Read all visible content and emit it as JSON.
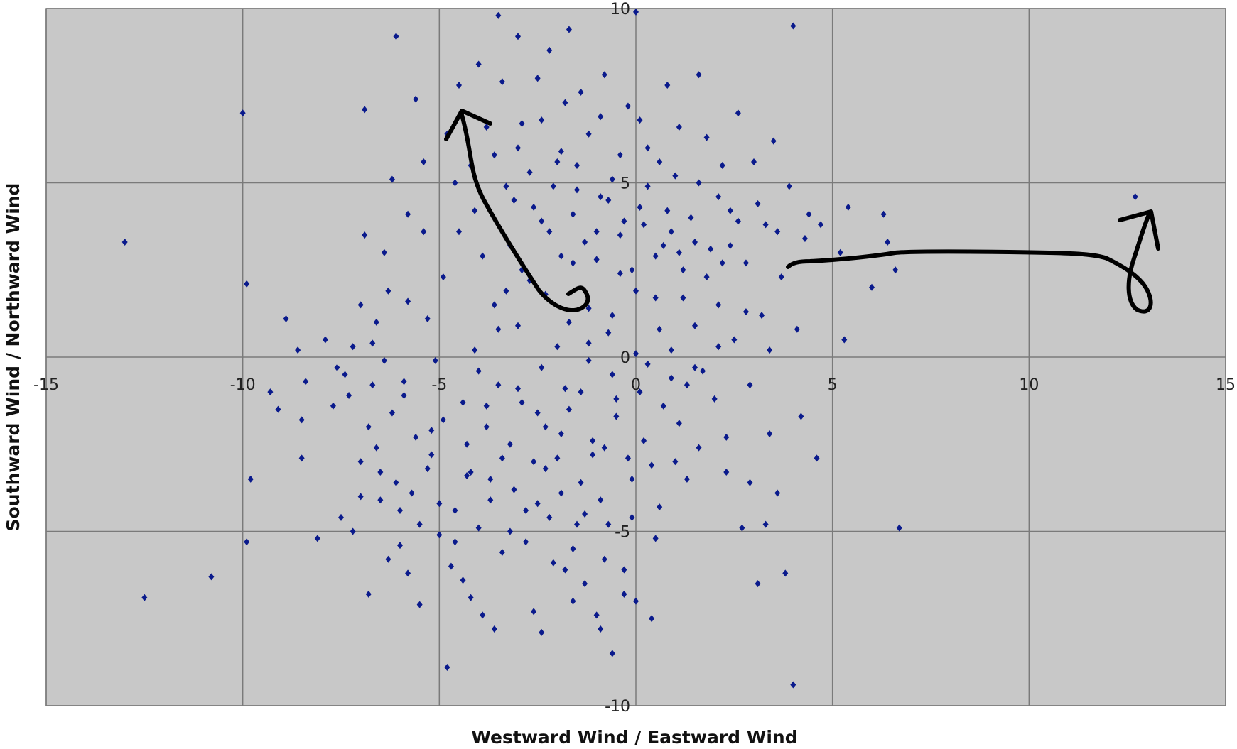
{
  "chart_data": {
    "type": "scatter",
    "title": "",
    "xlabel": "Westward Wind / Eastward Wind",
    "ylabel": "Southward Wind / Northward Wind",
    "xlim": [
      -15,
      15
    ],
    "ylim": [
      -10,
      10
    ],
    "x_ticks": [
      -15,
      -10,
      -5,
      0,
      5,
      10,
      15
    ],
    "y_ticks": [
      10,
      5,
      0,
      -5,
      -10
    ],
    "grid": true,
    "plot_background": "#c8c8c8",
    "grid_color": "#7a7a7a",
    "marker_color": "#0a1a8c",
    "annotation_color": "#000000",
    "series": [
      {
        "points": [
          [
            -13.0,
            3.3
          ],
          [
            -12.5,
            -6.9
          ],
          [
            -10.8,
            -6.3
          ],
          [
            -10.0,
            7.0
          ],
          [
            -9.9,
            2.1
          ],
          [
            -9.9,
            -5.3
          ],
          [
            -9.8,
            -3.5
          ],
          [
            -9.3,
            -1.0
          ],
          [
            -9.1,
            -1.5
          ],
          [
            -8.9,
            1.1
          ],
          [
            -8.6,
            0.2
          ],
          [
            -8.5,
            -1.8
          ],
          [
            -8.5,
            -2.9
          ],
          [
            -8.4,
            -0.7
          ],
          [
            -8.1,
            -5.2
          ],
          [
            -7.9,
            0.5
          ],
          [
            -7.7,
            -1.4
          ],
          [
            -7.5,
            -4.6
          ],
          [
            -7.4,
            -0.5
          ],
          [
            -7.3,
            -1.1
          ],
          [
            -7.2,
            -5.0
          ],
          [
            -7.0,
            1.5
          ],
          [
            -7.0,
            -3.0
          ],
          [
            -6.9,
            3.5
          ],
          [
            -6.9,
            7.1
          ],
          [
            -6.8,
            -6.8
          ],
          [
            -6.8,
            -2.0
          ],
          [
            -6.7,
            -0.8
          ],
          [
            -6.7,
            0.4
          ],
          [
            -6.6,
            -2.6
          ],
          [
            -6.5,
            -3.3
          ],
          [
            -6.5,
            -4.1
          ],
          [
            -6.4,
            -0.1
          ],
          [
            -6.4,
            3.0
          ],
          [
            -6.3,
            1.9
          ],
          [
            -6.2,
            5.1
          ],
          [
            -6.1,
            9.2
          ],
          [
            -6.0,
            -4.4
          ],
          [
            -6.0,
            -5.4
          ],
          [
            -5.9,
            -1.1
          ],
          [
            -5.9,
            -0.7
          ],
          [
            -5.8,
            1.6
          ],
          [
            -5.7,
            -3.9
          ],
          [
            -5.6,
            7.4
          ],
          [
            -5.5,
            -7.1
          ],
          [
            -5.4,
            3.6
          ],
          [
            -5.3,
            -3.2
          ],
          [
            -5.2,
            -2.1
          ],
          [
            -5.1,
            -0.1
          ],
          [
            -5.0,
            -5.1
          ],
          [
            -4.9,
            -1.8
          ],
          [
            -4.8,
            -8.9
          ],
          [
            -4.7,
            -6.0
          ],
          [
            -4.6,
            -4.4
          ],
          [
            -4.6,
            5.0
          ],
          [
            -4.5,
            7.8
          ],
          [
            -4.4,
            -6.4
          ],
          [
            -4.3,
            -2.5
          ],
          [
            -4.2,
            -3.3
          ],
          [
            -4.1,
            4.2
          ],
          [
            -4.0,
            -0.4
          ],
          [
            -3.9,
            -7.4
          ],
          [
            -3.9,
            2.9
          ],
          [
            -3.8,
            -1.4
          ],
          [
            -3.7,
            -4.1
          ],
          [
            -3.6,
            5.8
          ],
          [
            -3.5,
            0.8
          ],
          [
            -3.5,
            9.8
          ],
          [
            -3.4,
            -2.9
          ],
          [
            -3.3,
            1.9
          ],
          [
            -3.2,
            -5.0
          ],
          [
            -3.1,
            4.5
          ],
          [
            -3.0,
            9.2
          ],
          [
            -3.0,
            -0.9
          ],
          [
            -2.9,
            6.7
          ],
          [
            -2.8,
            -4.4
          ],
          [
            -2.7,
            2.2
          ],
          [
            -2.6,
            -7.3
          ],
          [
            -2.5,
            8.0
          ],
          [
            -2.5,
            -1.6
          ],
          [
            -2.4,
            3.9
          ],
          [
            -2.3,
            -3.2
          ],
          [
            -2.2,
            8.8
          ],
          [
            -2.1,
            -5.9
          ],
          [
            -2.0,
            0.3
          ],
          [
            -2.0,
            5.6
          ],
          [
            -1.9,
            -2.2
          ],
          [
            -1.8,
            7.3
          ],
          [
            -1.8,
            -6.1
          ],
          [
            -1.7,
            9.4
          ],
          [
            -1.6,
            2.7
          ],
          [
            -1.5,
            -4.8
          ],
          [
            -1.5,
            4.8
          ],
          [
            -1.4,
            -1.0
          ],
          [
            -1.3,
            -6.5
          ],
          [
            -1.2,
            1.4
          ],
          [
            -1.2,
            6.4
          ],
          [
            -1.1,
            -2.8
          ],
          [
            -1.0,
            3.6
          ],
          [
            -1.0,
            -7.4
          ],
          [
            -0.9,
            -4.1
          ],
          [
            -0.8,
            8.1
          ],
          [
            -0.7,
            0.7
          ],
          [
            -0.6,
            -8.5
          ],
          [
            -0.6,
            5.1
          ],
          [
            -0.5,
            -1.7
          ],
          [
            -0.4,
            2.4
          ],
          [
            -0.3,
            -6.1
          ],
          [
            -0.2,
            7.2
          ],
          [
            -0.1,
            -3.5
          ],
          [
            0.0,
            9.9
          ],
          [
            0.0,
            0.1
          ],
          [
            0.1,
            4.3
          ],
          [
            0.2,
            -2.4
          ],
          [
            0.3,
            6.0
          ],
          [
            0.4,
            -7.5
          ],
          [
            0.5,
            1.7
          ],
          [
            0.6,
            -4.3
          ],
          [
            0.7,
            3.2
          ],
          [
            0.8,
            7.8
          ],
          [
            0.9,
            -0.6
          ],
          [
            1.0,
            5.2
          ],
          [
            1.1,
            -1.9
          ],
          [
            1.2,
            2.5
          ],
          [
            1.3,
            -3.5
          ],
          [
            1.4,
            4.0
          ],
          [
            1.5,
            0.9
          ],
          [
            1.6,
            8.1
          ],
          [
            1.7,
            -0.4
          ],
          [
            1.8,
            6.3
          ],
          [
            1.9,
            3.1
          ],
          [
            2.0,
            -1.2
          ],
          [
            2.1,
            1.5
          ],
          [
            2.2,
            5.5
          ],
          [
            2.3,
            -2.3
          ],
          [
            2.4,
            4.2
          ],
          [
            2.5,
            0.5
          ],
          [
            2.6,
            7.0
          ],
          [
            2.7,
            -4.9
          ],
          [
            2.8,
            2.7
          ],
          [
            2.9,
            -0.8
          ],
          [
            3.0,
            5.6
          ],
          [
            3.1,
            -6.5
          ],
          [
            3.2,
            1.2
          ],
          [
            3.3,
            3.8
          ],
          [
            3.4,
            -2.2
          ],
          [
            3.5,
            6.2
          ],
          [
            3.6,
            -3.9
          ],
          [
            3.7,
            2.3
          ],
          [
            3.8,
            -6.2
          ],
          [
            3.9,
            4.9
          ],
          [
            4.0,
            -9.4
          ],
          [
            4.0,
            9.5
          ],
          [
            4.1,
            0.8
          ],
          [
            4.2,
            -1.7
          ],
          [
            4.3,
            3.4
          ],
          [
            4.4,
            4.1
          ],
          [
            4.6,
            -2.9
          ],
          [
            4.7,
            3.8
          ],
          [
            5.2,
            3.0
          ],
          [
            5.3,
            0.5
          ],
          [
            5.4,
            4.3
          ],
          [
            6.0,
            2.0
          ],
          [
            6.3,
            4.1
          ],
          [
            6.4,
            3.3
          ],
          [
            6.6,
            2.5
          ],
          [
            6.7,
            -4.9
          ],
          [
            12.7,
            4.6
          ],
          [
            -2.6,
            4.3
          ],
          [
            -2.2,
            3.6
          ],
          [
            -1.9,
            2.9
          ],
          [
            -1.6,
            4.1
          ],
          [
            -1.3,
            3.3
          ],
          [
            -1.0,
            2.8
          ],
          [
            -0.7,
            4.5
          ],
          [
            -0.4,
            3.5
          ],
          [
            -0.1,
            2.5
          ],
          [
            0.2,
            3.8
          ],
          [
            0.5,
            2.9
          ],
          [
            0.8,
            4.2
          ],
          [
            1.1,
            3.0
          ],
          [
            -3.2,
            3.2
          ],
          [
            -2.9,
            2.5
          ],
          [
            -2.3,
            1.8
          ],
          [
            -1.7,
            1.0
          ],
          [
            -1.2,
            0.4
          ],
          [
            -0.6,
            1.2
          ],
          [
            0.0,
            1.9
          ],
          [
            0.6,
            0.8
          ],
          [
            1.2,
            1.7
          ],
          [
            1.8,
            2.3
          ],
          [
            2.4,
            3.2
          ],
          [
            -3.6,
            1.5
          ],
          [
            -3.0,
            0.9
          ],
          [
            -2.4,
            -0.3
          ],
          [
            -1.8,
            -0.9
          ],
          [
            -1.2,
            -0.1
          ],
          [
            -0.6,
            -0.5
          ],
          [
            0.3,
            -0.2
          ],
          [
            0.9,
            0.2
          ],
          [
            1.5,
            -0.3
          ],
          [
            2.1,
            0.3
          ],
          [
            -4.1,
            0.2
          ],
          [
            -3.5,
            -0.8
          ],
          [
            -2.9,
            -1.3
          ],
          [
            -2.3,
            -2.0
          ],
          [
            -1.7,
            -1.5
          ],
          [
            -1.1,
            -2.4
          ],
          [
            -0.5,
            -1.2
          ],
          [
            0.1,
            -1.0
          ],
          [
            0.7,
            -1.4
          ],
          [
            1.3,
            -0.8
          ],
          [
            -4.4,
            -1.3
          ],
          [
            -3.8,
            -2.0
          ],
          [
            -3.2,
            -2.5
          ],
          [
            -2.6,
            -3.0
          ],
          [
            -2.0,
            -2.9
          ],
          [
            -1.4,
            -3.6
          ],
          [
            -0.8,
            -2.6
          ],
          [
            -0.2,
            -2.9
          ],
          [
            0.4,
            -3.1
          ],
          [
            -4.3,
            -3.4
          ],
          [
            -3.7,
            -3.5
          ],
          [
            -3.1,
            -3.8
          ],
          [
            -2.5,
            -4.2
          ],
          [
            -1.9,
            -3.9
          ],
          [
            -1.3,
            -4.5
          ],
          [
            -0.7,
            -4.8
          ],
          [
            -0.1,
            -4.6
          ],
          [
            -4.9,
            2.3
          ],
          [
            -4.5,
            3.6
          ],
          [
            -4.2,
            5.5
          ],
          [
            -3.8,
            6.6
          ],
          [
            -3.4,
            7.9
          ],
          [
            -3.0,
            6.0
          ],
          [
            -2.4,
            6.8
          ],
          [
            -1.9,
            5.9
          ],
          [
            -1.4,
            7.6
          ],
          [
            -0.9,
            6.9
          ],
          [
            -0.4,
            5.8
          ],
          [
            0.1,
            6.8
          ],
          [
            0.6,
            5.6
          ],
          [
            1.1,
            6.6
          ],
          [
            1.6,
            5.0
          ],
          [
            2.1,
            4.6
          ],
          [
            2.6,
            3.9
          ],
          [
            3.1,
            4.4
          ],
          [
            3.6,
            3.6
          ],
          [
            -5.3,
            1.1
          ],
          [
            -5.2,
            -2.8
          ],
          [
            -5.6,
            -2.3
          ],
          [
            -6.2,
            -1.6
          ],
          [
            -6.6,
            1.0
          ],
          [
            -7.2,
            0.3
          ],
          [
            -7.6,
            -0.3
          ],
          [
            -5.8,
            4.1
          ],
          [
            -5.4,
            5.6
          ],
          [
            -4.8,
            6.4
          ],
          [
            -4.0,
            8.4
          ],
          [
            -3.3,
            4.9
          ],
          [
            -2.7,
            5.3
          ],
          [
            -2.1,
            4.9
          ],
          [
            -1.5,
            5.5
          ],
          [
            -0.9,
            4.6
          ],
          [
            -0.3,
            3.9
          ],
          [
            0.3,
            4.9
          ],
          [
            0.9,
            3.6
          ],
          [
            1.5,
            3.3
          ],
          [
            2.2,
            2.7
          ],
          [
            2.8,
            1.3
          ],
          [
            3.4,
            0.2
          ],
          [
            -5.0,
            -4.2
          ],
          [
            -4.6,
            -5.3
          ],
          [
            -4.0,
            -4.9
          ],
          [
            -3.4,
            -5.6
          ],
          [
            -2.8,
            -5.3
          ],
          [
            -2.2,
            -4.6
          ],
          [
            -1.6,
            -5.5
          ],
          [
            -0.8,
            -5.8
          ],
          [
            -0.3,
            -6.8
          ],
          [
            0.5,
            -5.2
          ],
          [
            1.0,
            -3.0
          ],
          [
            1.6,
            -2.6
          ],
          [
            2.3,
            -3.3
          ],
          [
            2.9,
            -3.6
          ],
          [
            3.3,
            -4.8
          ],
          [
            0.0,
            -7.0
          ],
          [
            -0.9,
            -7.8
          ],
          [
            -1.6,
            -7.0
          ],
          [
            -2.4,
            -7.9
          ],
          [
            -3.6,
            -7.8
          ],
          [
            -4.2,
            -6.9
          ],
          [
            -5.8,
            -6.2
          ],
          [
            -6.3,
            -5.8
          ],
          [
            -7.0,
            -4.0
          ],
          [
            -6.1,
            -3.6
          ],
          [
            -5.5,
            -4.8
          ]
        ]
      }
    ],
    "annotations": [
      {
        "kind": "hand-drawn-arrow",
        "description": "curl near (-1.5, 1.8) leading up-left to an arrowhead near (-4.5, 7)"
      },
      {
        "kind": "hand-drawn-arrow",
        "description": "line from (3.9, 2.6) rightwards to a loop and arrowhead near (13, 4)"
      }
    ]
  }
}
